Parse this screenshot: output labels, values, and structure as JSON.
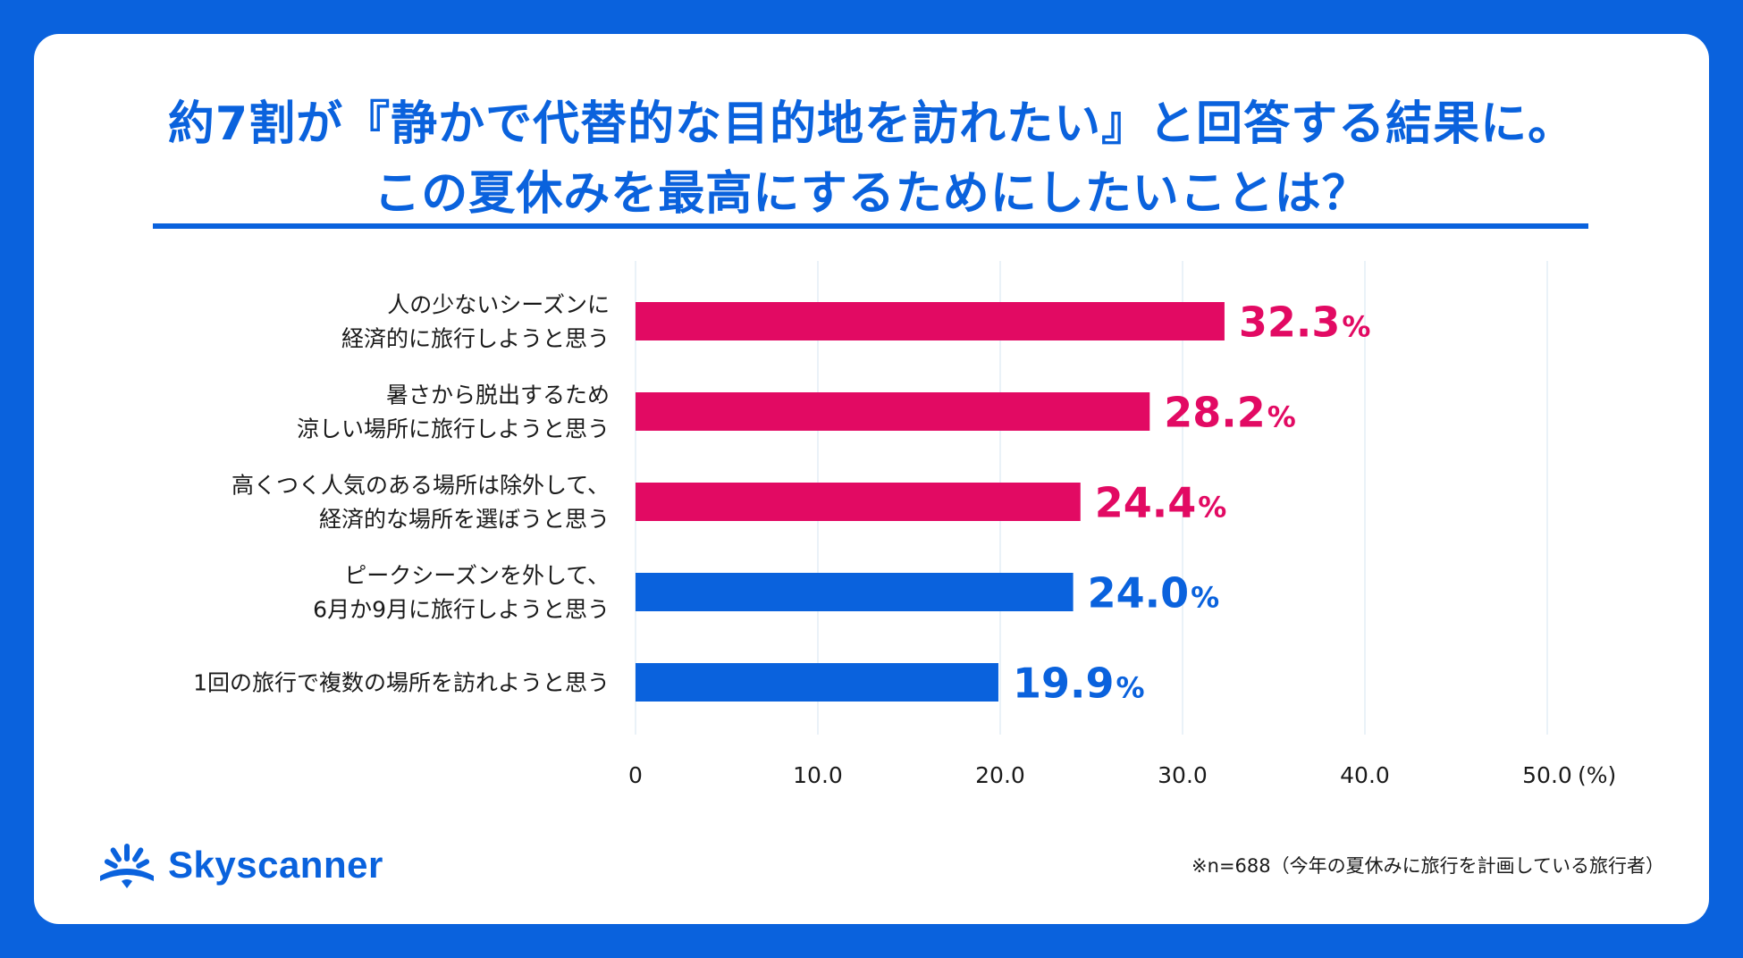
{
  "title": {
    "line1": "約7割が『静かで代替的な目的地を訪れたい』と回答する結果に。",
    "line2": "この夏休みを最高にするためにしたいことは？"
  },
  "chart_data": {
    "type": "bar",
    "orientation": "horizontal",
    "categories": [
      [
        "人の少ないシーズンに",
        "経済的に旅行しようと思う"
      ],
      [
        "暑さから脱出するため",
        "涼しい場所に旅行しようと思う"
      ],
      [
        "高くつく人気のある場所は除外して、",
        "経済的な場所を選ぼうと思う"
      ],
      [
        "ピークシーズンを外して、",
        "6月か9月に旅行しようと思う"
      ],
      [
        "1回の旅行で複数の場所を訪れようと思う"
      ]
    ],
    "values": [
      32.3,
      28.2,
      24.4,
      24.0,
      19.9
    ],
    "value_labels": [
      "32.3",
      "28.2",
      "24.4",
      "24.0",
      "19.9"
    ],
    "value_suffix": "%",
    "bar_colors": [
      "#e20a63",
      "#e20a63",
      "#e20a63",
      "#0a62dd",
      "#0a62dd"
    ],
    "xlim": [
      0,
      50
    ],
    "xticks": [
      "0",
      "10.0",
      "20.0",
      "30.0",
      "40.0",
      "50.0"
    ],
    "x_unit": "(%)",
    "grid": true
  },
  "brand": {
    "name": "Skyscanner",
    "color": "#0a62dd"
  },
  "footnote": "※n=688（今年の夏休みに旅行を計画している旅行者）"
}
